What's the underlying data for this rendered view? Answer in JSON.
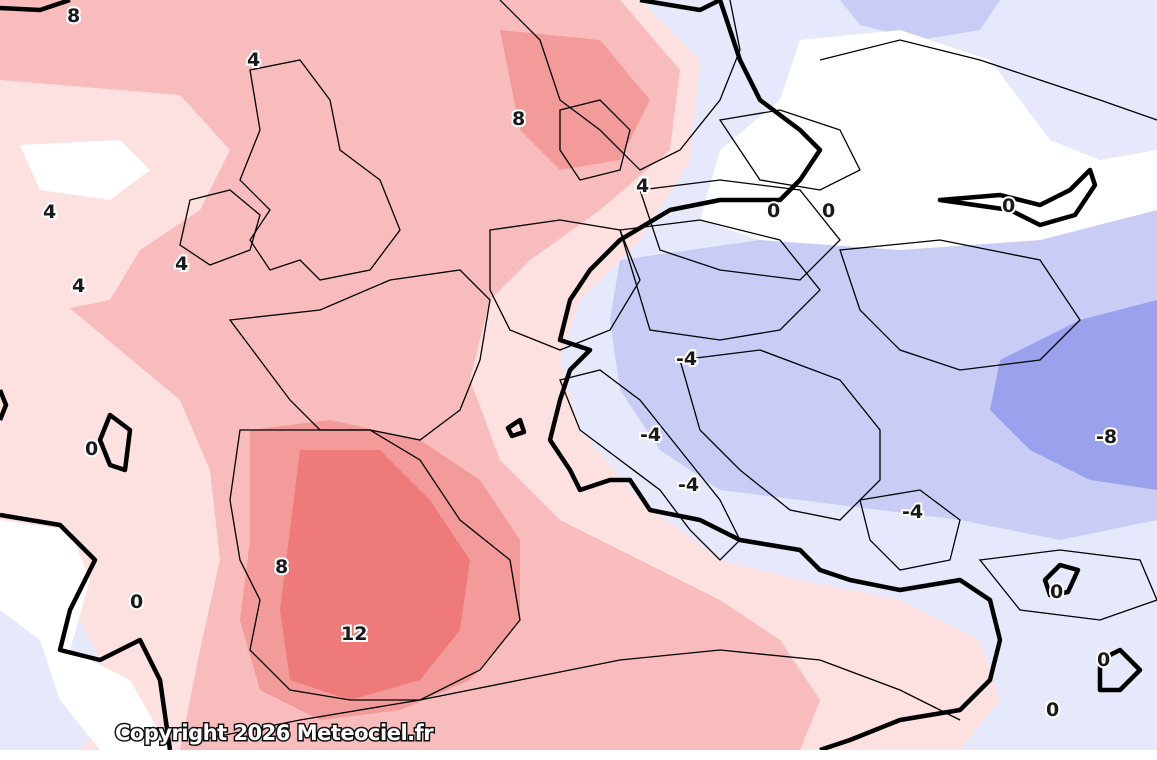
{
  "map": {
    "copyright": "Copyright 2026 Meteociel.fr",
    "colors": {
      "warm_light": "#fde0e0",
      "warm_mid": "#f8bcbc",
      "warm_strong": "#f39a9a",
      "warm_hot": "#ee7a7a",
      "cold_light": "#e6e8fb",
      "cold_mid": "#c9cdf6",
      "cold_strong": "#9aa2ee",
      "contour": "#000000"
    },
    "contour_labels": [
      {
        "id": "l1",
        "text": "8"
      },
      {
        "id": "l2",
        "text": "4"
      },
      {
        "id": "l3",
        "text": "8"
      },
      {
        "id": "l4",
        "text": "4"
      },
      {
        "id": "l5",
        "text": "4"
      },
      {
        "id": "l6",
        "text": "4"
      },
      {
        "id": "l7",
        "text": "4"
      },
      {
        "id": "l8",
        "text": "0"
      },
      {
        "id": "l9",
        "text": "0"
      },
      {
        "id": "l10",
        "text": "0"
      },
      {
        "id": "l11",
        "text": "0"
      },
      {
        "id": "l12",
        "text": "-4"
      },
      {
        "id": "l13",
        "text": "-4"
      },
      {
        "id": "l14",
        "text": "-4"
      },
      {
        "id": "l15",
        "text": "-8"
      },
      {
        "id": "l16",
        "text": "-4"
      },
      {
        "id": "l17",
        "text": "8"
      },
      {
        "id": "l18",
        "text": "12"
      },
      {
        "id": "l19",
        "text": "0"
      },
      {
        "id": "l20",
        "text": "0"
      },
      {
        "id": "l21",
        "text": "0"
      },
      {
        "id": "l22",
        "text": "0"
      }
    ]
  }
}
